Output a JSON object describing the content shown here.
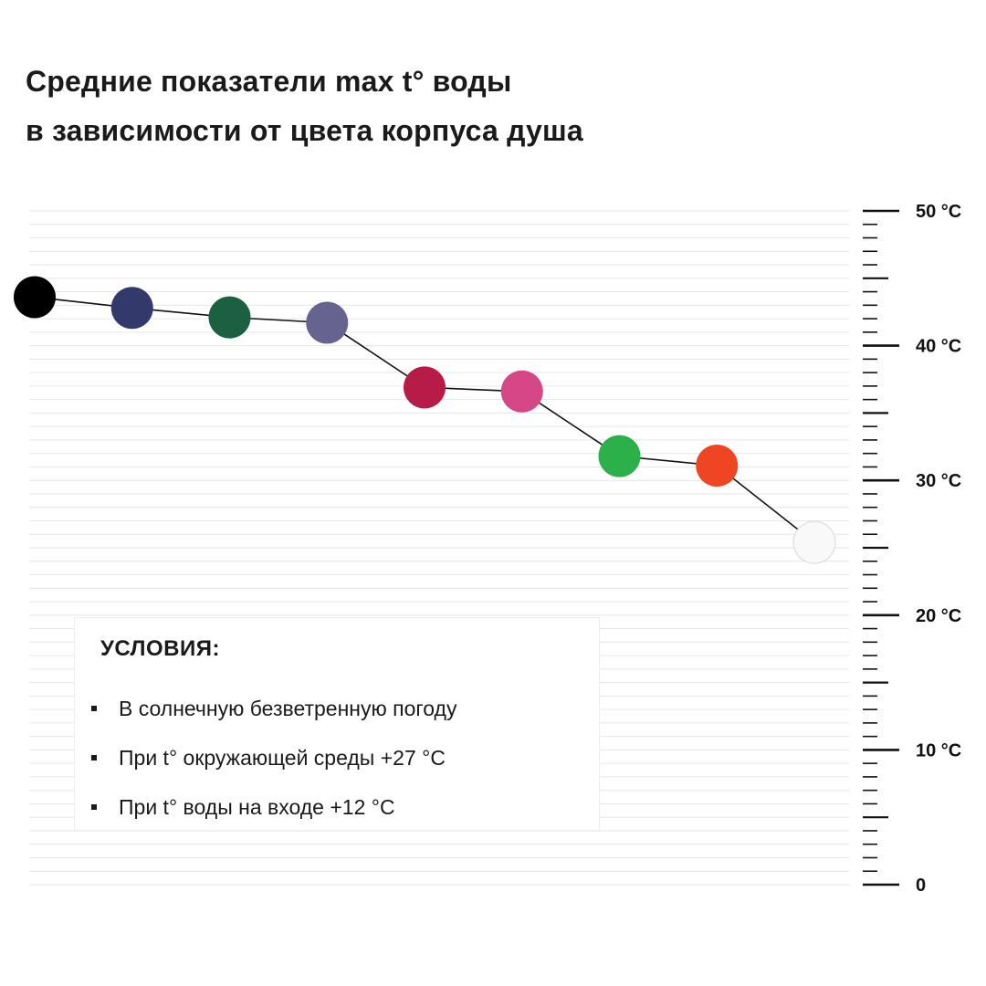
{
  "title": {
    "line1": "Средние показатели max t° воды",
    "line2": "в зависимости от цвета корпуса душа"
  },
  "conditions": {
    "heading": "УСЛОВИЯ:",
    "items": [
      "В солнечную безветренную погоду",
      "При t° окружающей среды +27 °C",
      "При t° воды на входе +12 °C"
    ]
  },
  "chart_data": {
    "type": "line",
    "title": "Средние показатели max t° воды в зависимости от цвета корпуса душа",
    "xlabel": "",
    "ylabel": "",
    "ylim": [
      0,
      50
    ],
    "y_ticks": [
      {
        "value": 50,
        "label": "50 °C"
      },
      {
        "value": 40,
        "label": "40 °C"
      },
      {
        "value": 30,
        "label": "30 °C"
      },
      {
        "value": 20,
        "label": "20 °C"
      },
      {
        "value": 10,
        "label": "10 °C"
      },
      {
        "value": 0,
        "label": "0"
      }
    ],
    "grid": true,
    "legend": "none",
    "line_color": "#111111",
    "points": [
      {
        "color": "#000000",
        "value": 43.6
      },
      {
        "color": "#333a6b",
        "value": 42.8
      },
      {
        "color": "#1b6141",
        "value": 42.1
      },
      {
        "color": "#676390",
        "value": 41.7
      },
      {
        "color": "#b71c48",
        "value": 36.9
      },
      {
        "color": "#d54786",
        "value": 36.6
      },
      {
        "color": "#2bb04a",
        "value": 31.8
      },
      {
        "color": "#ee4622",
        "value": 31.1
      },
      {
        "color": "#f9f9f9",
        "value": 25.4
      }
    ]
  }
}
